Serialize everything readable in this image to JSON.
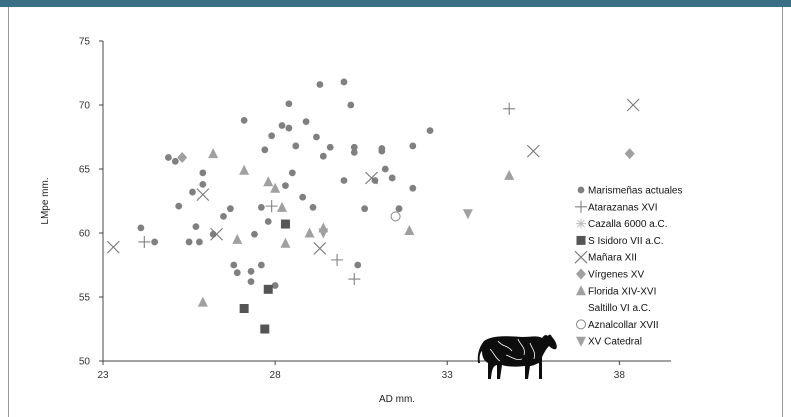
{
  "chart_data": {
    "type": "scatter",
    "xlabel": "AD mm.",
    "ylabel": "LMpe mm.",
    "xlim": [
      23,
      39.5
    ],
    "ylim": [
      50,
      75
    ],
    "x_ticks": [
      23,
      28,
      33,
      38
    ],
    "y_ticks": [
      50,
      55,
      60,
      65,
      70,
      75
    ],
    "grid": false,
    "legend_position": "right",
    "series": [
      {
        "name": "Marismeñas actuales",
        "marker": "circle",
        "color": "#808080",
        "points": [
          [
            24.1,
            60.4
          ],
          [
            24.5,
            59.3
          ],
          [
            24.9,
            65.9
          ],
          [
            25.1,
            65.6
          ],
          [
            25.2,
            62.1
          ],
          [
            25.5,
            59.3
          ],
          [
            25.6,
            63.2
          ],
          [
            25.7,
            60.5
          ],
          [
            25.8,
            59.3
          ],
          [
            25.9,
            64.7
          ],
          [
            25.9,
            63.8
          ],
          [
            26.2,
            59.9
          ],
          [
            26.5,
            61.3
          ],
          [
            26.7,
            61.9
          ],
          [
            26.8,
            57.5
          ],
          [
            26.9,
            56.9
          ],
          [
            27.1,
            68.8
          ],
          [
            27.3,
            56.2
          ],
          [
            27.3,
            57.0
          ],
          [
            27.4,
            59.9
          ],
          [
            27.6,
            62.0
          ],
          [
            27.6,
            57.5
          ],
          [
            27.7,
            66.5
          ],
          [
            27.8,
            60.9
          ],
          [
            27.9,
            67.6
          ],
          [
            28.0,
            55.9
          ],
          [
            28.2,
            68.4
          ],
          [
            28.3,
            63.7
          ],
          [
            28.4,
            70.1
          ],
          [
            28.4,
            68.2
          ],
          [
            28.5,
            64.7
          ],
          [
            28.6,
            66.8
          ],
          [
            28.8,
            62.8
          ],
          [
            28.9,
            68.7
          ],
          [
            29.1,
            62.0
          ],
          [
            29.2,
            67.5
          ],
          [
            29.3,
            71.6
          ],
          [
            29.4,
            66.0
          ],
          [
            29.6,
            66.7
          ],
          [
            30.0,
            71.8
          ],
          [
            30.0,
            64.1
          ],
          [
            30.2,
            70.0
          ],
          [
            30.3,
            66.7
          ],
          [
            30.3,
            66.3
          ],
          [
            30.4,
            57.5
          ],
          [
            30.6,
            61.9
          ],
          [
            30.9,
            64.1
          ],
          [
            31.1,
            66.6
          ],
          [
            31.1,
            66.4
          ],
          [
            31.2,
            65.0
          ],
          [
            31.4,
            64.3
          ],
          [
            31.6,
            61.9
          ],
          [
            32.0,
            66.8
          ],
          [
            32.0,
            63.5
          ],
          [
            32.5,
            68.0
          ]
        ]
      },
      {
        "name": "Atarazanas XVI",
        "marker": "plus",
        "color": "#808080",
        "points": [
          [
            24.2,
            59.3
          ],
          [
            27.9,
            62.1
          ],
          [
            29.8,
            57.9
          ],
          [
            30.3,
            56.4
          ],
          [
            34.8,
            69.7
          ]
        ]
      },
      {
        "name": "Cazalla 6000 a.C.",
        "marker": "star",
        "color": "#bfbfbf",
        "points": []
      },
      {
        "name": "S Isidoro VII a.C.",
        "marker": "square",
        "color": "#555555",
        "points": [
          [
            27.1,
            54.1
          ],
          [
            27.7,
            52.5
          ],
          [
            27.8,
            55.6
          ],
          [
            28.3,
            60.7
          ]
        ]
      },
      {
        "name": "Mañara XII",
        "marker": "x",
        "color": "#777777",
        "points": [
          [
            23.3,
            58.9
          ],
          [
            25.9,
            63.0
          ],
          [
            26.3,
            59.9
          ],
          [
            29.3,
            58.8
          ],
          [
            30.8,
            64.3
          ],
          [
            35.5,
            66.4
          ],
          [
            38.4,
            70.0
          ]
        ]
      },
      {
        "name": "Vírgenes XV",
        "marker": "diamond",
        "color": "#a0a0a0",
        "points": [
          [
            25.3,
            65.9
          ],
          [
            38.3,
            66.2
          ]
        ]
      },
      {
        "name": "Florida XIV-XVI",
        "marker": "triangle-up",
        "color": "#a0a0a0",
        "points": [
          [
            25.9,
            54.6
          ],
          [
            26.2,
            66.2
          ],
          [
            26.9,
            59.5
          ],
          [
            27.1,
            64.9
          ],
          [
            27.8,
            64.0
          ],
          [
            28.0,
            63.5
          ],
          [
            28.2,
            62.0
          ],
          [
            28.3,
            59.2
          ],
          [
            29.0,
            60.0
          ],
          [
            29.4,
            60.4
          ],
          [
            31.9,
            60.2
          ],
          [
            34.8,
            64.5
          ]
        ]
      },
      {
        "name": "Saltillo VI a.C.",
        "marker": "none",
        "color": "#ffffff",
        "points": []
      },
      {
        "name": "Aznalcollar XVII",
        "marker": "circle-open",
        "color": "#888888",
        "points": [
          [
            31.5,
            61.3
          ]
        ]
      },
      {
        "name": "XV Catedral",
        "marker": "triangle-down",
        "color": "#a0a0a0",
        "points": [
          [
            29.4,
            60.0
          ],
          [
            33.6,
            61.5
          ]
        ]
      }
    ]
  }
}
